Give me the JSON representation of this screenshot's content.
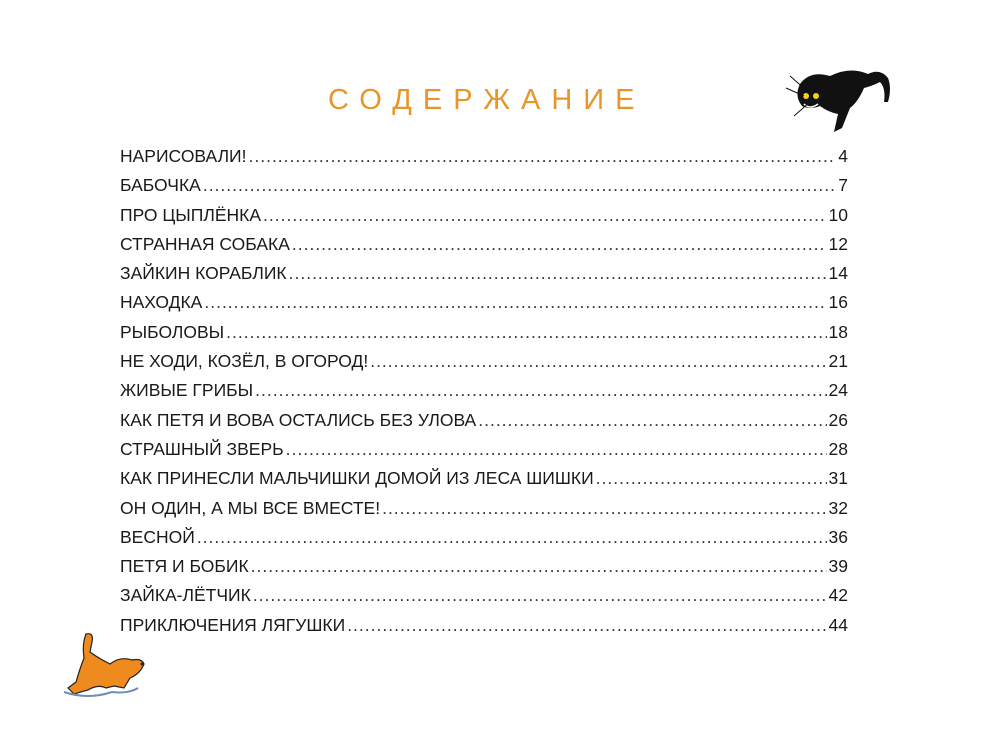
{
  "title": "СОДЕРЖАНИЕ",
  "colors": {
    "title": "#e8962a",
    "text": "#1a1a1a"
  },
  "illustrations": [
    "black-cat",
    "orange-dog"
  ],
  "entries": [
    {
      "title": "НАРИСОВАЛИ!",
      "page": "4"
    },
    {
      "title": "БАБОЧКА",
      "page": "7"
    },
    {
      "title": "ПРО ЦЫПЛЁНКА",
      "page": "10"
    },
    {
      "title": "СТРАННАЯ СОБАКА",
      "page": "12"
    },
    {
      "title": "ЗАЙКИН КОРАБЛИК",
      "page": "14"
    },
    {
      "title": "НАХОДКА",
      "page": "16"
    },
    {
      "title": "РЫБОЛОВЫ",
      "page": "18"
    },
    {
      "title": "НЕ ХОДИ, КОЗЁЛ, В ОГОРОД!",
      "page": "21"
    },
    {
      "title": "ЖИВЫЕ ГРИБЫ",
      "page": "24"
    },
    {
      "title": "КАК ПЕТЯ И ВОВА ОСТАЛИСЬ БЕЗ УЛОВА",
      "page": "26"
    },
    {
      "title": "СТРАШНЫЙ ЗВЕРЬ",
      "page": "28"
    },
    {
      "title": "КАК ПРИНЕСЛИ МАЛЬЧИШКИ ДОМОЙ ИЗ ЛЕСА ШИШКИ",
      "page": "31"
    },
    {
      "title": "ОН ОДИН, А МЫ ВСЕ ВМЕСТЕ!",
      "page": "32"
    },
    {
      "title": "ВЕСНОЙ",
      "page": "36"
    },
    {
      "title": "ПЕТЯ И БОБИК",
      "page": "39"
    },
    {
      "title": "ЗАЙКА-ЛЁТЧИК",
      "page": "42"
    },
    {
      "title": "ПРИКЛЮЧЕНИЯ ЛЯГУШКИ",
      "page": "44"
    }
  ]
}
